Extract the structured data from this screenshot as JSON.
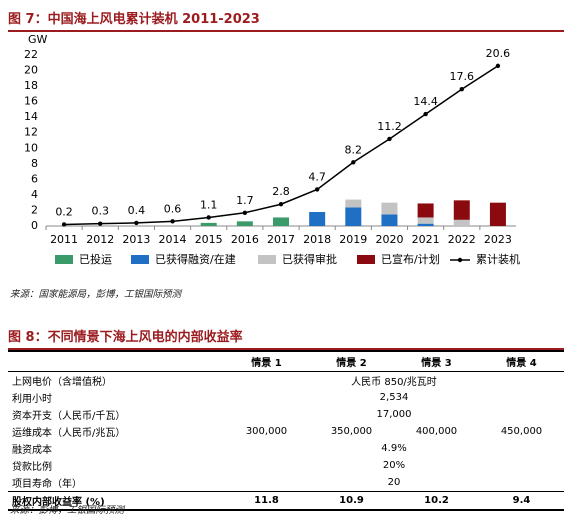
{
  "figure7_title": "图 7：中国海上风电累计装机 2011-2023",
  "chart_data": {
    "type": "bar",
    "stacked": true,
    "y_unit": "GW",
    "categories": [
      "2011",
      "2012",
      "2013",
      "2014",
      "2015",
      "2016",
      "2017",
      "2018",
      "2019",
      "2020",
      "2021",
      "2022",
      "2023"
    ],
    "ylim": [
      0,
      22
    ],
    "yticks": [
      0,
      2,
      4,
      6,
      8,
      10,
      12,
      14,
      16,
      18,
      20,
      22
    ],
    "series": [
      {
        "name": "已投运",
        "color": "#3a9a6a",
        "values": [
          null,
          null,
          null,
          null,
          0.4,
          0.6,
          1.1,
          null,
          null,
          null,
          null,
          null,
          null
        ]
      },
      {
        "name": "已获得融资/在建",
        "color": "#1f6fc5",
        "values": [
          null,
          null,
          null,
          null,
          null,
          null,
          null,
          1.8,
          2.4,
          1.5,
          0.3,
          null,
          null
        ]
      },
      {
        "name": "已获得审批",
        "color": "#c3c3c3",
        "values": [
          null,
          null,
          null,
          null,
          null,
          null,
          null,
          null,
          1.0,
          1.5,
          0.8,
          0.8,
          null
        ]
      },
      {
        "name": "已宣布/计划",
        "color": "#8b0a0f",
        "values": [
          null,
          null,
          null,
          null,
          null,
          null,
          null,
          null,
          null,
          null,
          1.8,
          2.5,
          3.0
        ]
      },
      {
        "name": "累计装机",
        "type": "line",
        "color": "#000000",
        "values": [
          0.2,
          0.3,
          0.4,
          0.6,
          1.1,
          1.7,
          2.8,
          4.7,
          8.2,
          11.2,
          14.4,
          17.6,
          20.6
        ]
      }
    ]
  },
  "source1": "来源：国家能源局，彭博，工银国际预测",
  "figure8_title": "图 8：不同情景下海上风电的内部收益率",
  "table": {
    "header": [
      "情景 1",
      "情景 2",
      "情景 3",
      "情景 4"
    ],
    "rows": [
      {
        "label": "上网电价（含增值税）",
        "cells": [
          "人民币 850/兆瓦时"
        ]
      },
      {
        "label": "利用小时",
        "cells": [
          "2,534"
        ]
      },
      {
        "label": "资本开支（人民币/千瓦）",
        "cells": [
          "17,000"
        ]
      },
      {
        "label": "运维成本（人民币/兆瓦）",
        "cells": [
          "300,000",
          "350,000",
          "400,000",
          "450,000"
        ]
      },
      {
        "label": "融资成本",
        "cells": [
          "4.9%"
        ]
      },
      {
        "label": "贷款比例",
        "cells": [
          "20%"
        ]
      },
      {
        "label": "项目寿命（年）",
        "cells": [
          "20"
        ]
      },
      {
        "label": "股权内部收益率 (%)",
        "cells": [
          "11.8",
          "10.9",
          "10.2",
          "9.4"
        ]
      }
    ]
  },
  "source2": "来源：彭博，工银国际预测"
}
